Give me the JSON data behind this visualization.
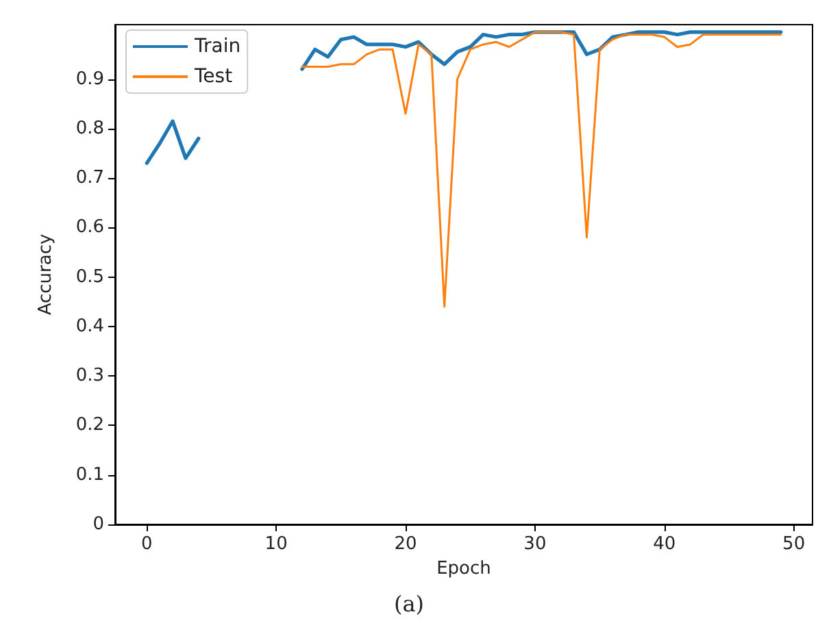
{
  "chart_data": {
    "type": "line",
    "xlabel": "Epoch",
    "ylabel": "Accuracy",
    "annotations": [
      "(a)"
    ],
    "x": [
      0,
      1,
      2,
      3,
      4,
      5,
      6,
      7,
      8,
      9,
      10,
      11,
      12,
      13,
      14,
      15,
      16,
      17,
      18,
      19,
      20,
      21,
      22,
      23,
      24,
      25,
      26,
      27,
      28,
      29,
      30,
      31,
      32,
      33,
      34,
      35,
      36,
      37,
      38,
      39,
      40,
      41,
      42,
      43,
      44,
      45,
      46,
      47,
      48,
      49
    ],
    "series": [
      {
        "name": "Train",
        "color": "#1f77b4",
        "values": [
          0.73,
          0.77,
          0.815,
          0.74,
          0.78,
          null,
          null,
          null,
          null,
          null,
          null,
          null,
          0.92,
          0.96,
          0.945,
          0.98,
          0.985,
          0.97,
          0.97,
          0.97,
          0.965,
          0.975,
          0.95,
          0.93,
          0.955,
          0.965,
          0.99,
          0.985,
          0.99,
          0.99,
          0.995,
          0.995,
          0.995,
          0.995,
          0.95,
          0.96,
          0.985,
          0.99,
          0.995,
          0.995,
          0.995,
          0.99,
          0.995,
          0.995,
          0.995,
          0.995,
          0.995,
          0.995,
          0.995,
          0.995
        ]
      },
      {
        "name": "Test",
        "color": "#ff7f0e",
        "values": [
          null,
          null,
          null,
          null,
          null,
          null,
          null,
          null,
          null,
          null,
          null,
          null,
          0.925,
          0.925,
          0.925,
          0.93,
          0.93,
          0.95,
          0.96,
          0.96,
          0.83,
          0.97,
          0.95,
          0.44,
          0.9,
          0.96,
          0.97,
          0.975,
          0.965,
          0.98,
          0.995,
          0.995,
          0.995,
          0.99,
          0.58,
          0.96,
          0.98,
          0.99,
          0.99,
          0.99,
          0.985,
          0.965,
          0.97,
          0.99,
          0.99,
          0.99,
          0.99,
          0.99,
          0.99,
          0.99
        ]
      }
    ],
    "xlim": [
      -2.45,
      51.45
    ],
    "xticks": [
      0,
      10,
      20,
      30,
      40,
      50
    ],
    "ylim": [
      0,
      1.01
    ],
    "yticks": [
      0,
      0.1,
      0.2,
      0.3,
      0.4,
      0.5,
      0.6,
      0.7,
      0.8,
      0.9
    ],
    "grid": false,
    "legend": "top left",
    "marker": "none",
    "line_style": "solid"
  }
}
